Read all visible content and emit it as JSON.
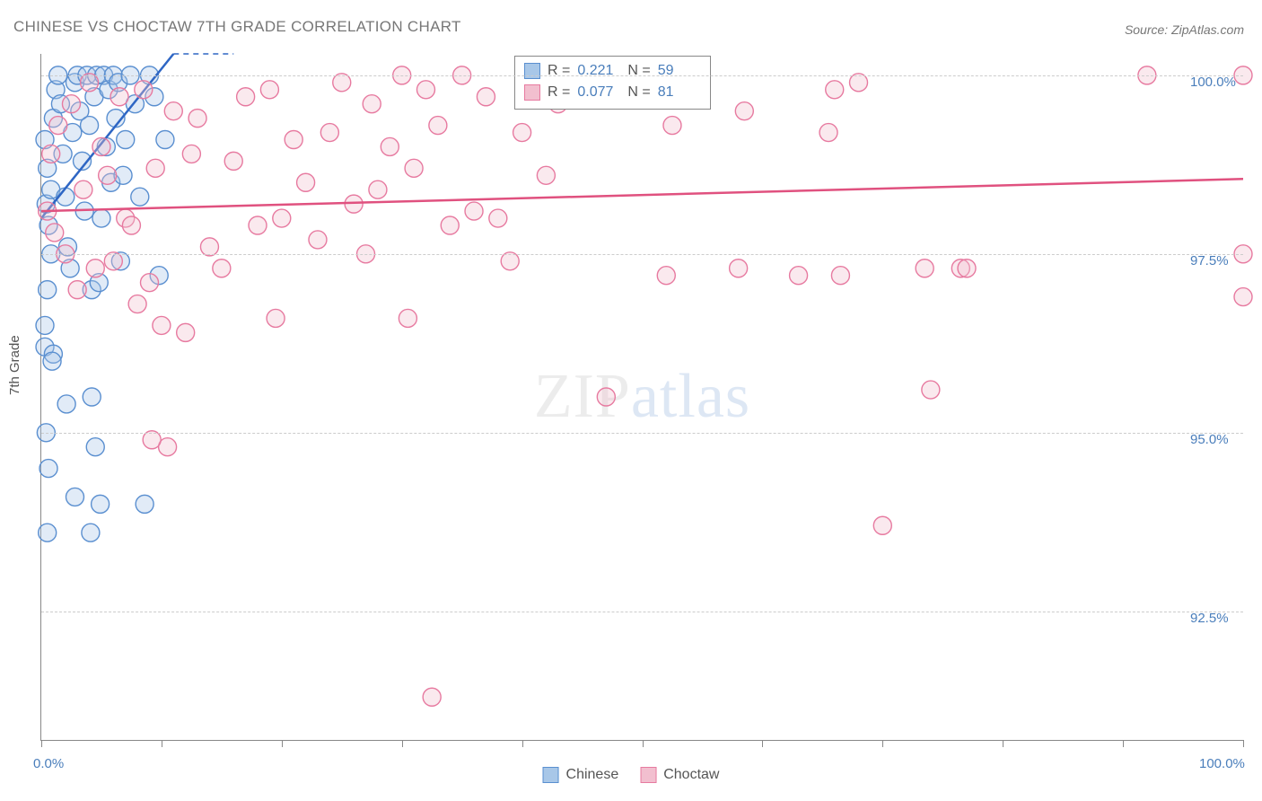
{
  "title": "CHINESE VS CHOCTAW 7TH GRADE CORRELATION CHART",
  "source": "Source: ZipAtlas.com",
  "watermark_zip": "ZIP",
  "watermark_atlas": "atlas",
  "ylabel": "7th Grade",
  "chart": {
    "type": "scatter",
    "background_color": "#ffffff",
    "grid_color": "#cccccc",
    "axis_color": "#888888",
    "tick_label_color": "#4a7ebb",
    "xlim": [
      0,
      100
    ],
    "ylim": [
      90.7,
      100.3
    ],
    "x_ticks": [
      0,
      10,
      20,
      30,
      40,
      50,
      60,
      70,
      80,
      90,
      100
    ],
    "x_tick_labels": {
      "0": "0.0%",
      "100": "100.0%"
    },
    "y_ticks": [
      92.5,
      95.0,
      97.5,
      100.0
    ],
    "y_tick_labels": [
      "92.5%",
      "95.0%",
      "97.5%",
      "100.0%"
    ],
    "marker_radius": 10,
    "marker_fill_opacity": 0.35,
    "marker_stroke_width": 1.4,
    "title_fontsize": 17,
    "label_fontsize": 15,
    "series": [
      {
        "name": "Chinese",
        "color_fill": "#a8c7e8",
        "color_stroke": "#5a8fd0",
        "trend": {
          "x1": 0,
          "y1": 98.0,
          "x2": 11,
          "y2": 100.3,
          "color": "#2e66c4",
          "width": 2.5,
          "extrap_x2": 16,
          "extrap_y2": 100.3
        },
        "points": [
          [
            0.3,
            99.1
          ],
          [
            0.5,
            98.7
          ],
          [
            0.4,
            98.2
          ],
          [
            0.6,
            97.9
          ],
          [
            0.8,
            98.4
          ],
          [
            1.0,
            99.4
          ],
          [
            1.2,
            99.8
          ],
          [
            1.4,
            100.0
          ],
          [
            1.6,
            99.6
          ],
          [
            1.8,
            98.9
          ],
          [
            2.0,
            98.3
          ],
          [
            2.2,
            97.6
          ],
          [
            2.4,
            97.3
          ],
          [
            2.6,
            99.2
          ],
          [
            2.8,
            99.9
          ],
          [
            3.0,
            100.0
          ],
          [
            3.2,
            99.5
          ],
          [
            3.4,
            98.8
          ],
          [
            3.6,
            98.1
          ],
          [
            3.8,
            100.0
          ],
          [
            4.0,
            99.3
          ],
          [
            4.2,
            97.0
          ],
          [
            4.4,
            99.7
          ],
          [
            4.6,
            100.0
          ],
          [
            4.8,
            97.1
          ],
          [
            5.0,
            98.0
          ],
          [
            5.2,
            100.0
          ],
          [
            5.4,
            99.0
          ],
          [
            5.6,
            99.8
          ],
          [
            5.8,
            98.5
          ],
          [
            6.0,
            100.0
          ],
          [
            6.2,
            99.4
          ],
          [
            6.4,
            99.9
          ],
          [
            6.6,
            97.4
          ],
          [
            6.8,
            98.6
          ],
          [
            7.0,
            99.1
          ],
          [
            7.4,
            100.0
          ],
          [
            7.8,
            99.6
          ],
          [
            8.2,
            98.3
          ],
          [
            8.6,
            94.0
          ],
          [
            9.0,
            100.0
          ],
          [
            9.4,
            99.7
          ],
          [
            9.8,
            97.2
          ],
          [
            10.3,
            99.1
          ],
          [
            0.8,
            97.5
          ],
          [
            0.5,
            97.0
          ],
          [
            0.3,
            96.2
          ],
          [
            1.0,
            96.1
          ],
          [
            0.9,
            96.0
          ],
          [
            2.1,
            95.4
          ],
          [
            4.2,
            95.5
          ],
          [
            4.9,
            94.0
          ],
          [
            0.4,
            95.0
          ],
          [
            4.5,
            94.8
          ],
          [
            0.6,
            94.5
          ],
          [
            2.8,
            94.1
          ],
          [
            4.1,
            93.6
          ],
          [
            0.5,
            93.6
          ],
          [
            0.3,
            96.5
          ]
        ]
      },
      {
        "name": "Choctaw",
        "color_fill": "#f2bfcf",
        "color_stroke": "#e77aa0",
        "trend": {
          "x1": 0,
          "y1": 98.1,
          "x2": 100,
          "y2": 98.55,
          "color": "#e0517f",
          "width": 2.5
        },
        "points": [
          [
            0.5,
            98.1
          ],
          [
            0.8,
            98.9
          ],
          [
            1.1,
            97.8
          ],
          [
            1.4,
            99.3
          ],
          [
            2.0,
            97.5
          ],
          [
            2.5,
            99.6
          ],
          [
            3.0,
            97.0
          ],
          [
            3.5,
            98.4
          ],
          [
            4.0,
            99.9
          ],
          [
            4.5,
            97.3
          ],
          [
            5.0,
            99.0
          ],
          [
            5.5,
            98.6
          ],
          [
            6.0,
            97.4
          ],
          [
            6.5,
            99.7
          ],
          [
            7.0,
            98.0
          ],
          [
            7.5,
            97.9
          ],
          [
            8.0,
            96.8
          ],
          [
            8.5,
            99.8
          ],
          [
            9.0,
            97.1
          ],
          [
            9.5,
            98.7
          ],
          [
            10.0,
            96.5
          ],
          [
            10.5,
            94.8
          ],
          [
            11.0,
            99.5
          ],
          [
            9.2,
            94.9
          ],
          [
            12.0,
            96.4
          ],
          [
            12.5,
            98.9
          ],
          [
            13.0,
            99.4
          ],
          [
            14.0,
            97.6
          ],
          [
            15.0,
            97.3
          ],
          [
            16.0,
            98.8
          ],
          [
            17.0,
            99.7
          ],
          [
            18.0,
            97.9
          ],
          [
            19.0,
            99.8
          ],
          [
            19.5,
            96.6
          ],
          [
            20.0,
            98.0
          ],
          [
            21.0,
            99.1
          ],
          [
            22.0,
            98.5
          ],
          [
            23.0,
            97.7
          ],
          [
            24.0,
            99.2
          ],
          [
            25.0,
            99.9
          ],
          [
            26.0,
            98.2
          ],
          [
            27.0,
            97.5
          ],
          [
            27.5,
            99.6
          ],
          [
            28.0,
            98.4
          ],
          [
            29.0,
            99.0
          ],
          [
            30.0,
            100.0
          ],
          [
            30.5,
            96.6
          ],
          [
            31.0,
            98.7
          ],
          [
            32.0,
            99.8
          ],
          [
            32.5,
            91.3
          ],
          [
            33.0,
            99.3
          ],
          [
            34.0,
            97.9
          ],
          [
            35.0,
            100.0
          ],
          [
            36.0,
            98.1
          ],
          [
            37.0,
            99.7
          ],
          [
            38.0,
            98.0
          ],
          [
            39.0,
            97.4
          ],
          [
            40.0,
            99.2
          ],
          [
            41.0,
            99.9
          ],
          [
            42.0,
            98.6
          ],
          [
            43.0,
            99.6
          ],
          [
            47.0,
            95.5
          ],
          [
            52.0,
            97.2
          ],
          [
            52.5,
            99.3
          ],
          [
            53.0,
            99.9
          ],
          [
            58.0,
            97.3
          ],
          [
            58.5,
            99.5
          ],
          [
            63.0,
            97.2
          ],
          [
            65.5,
            99.2
          ],
          [
            66.0,
            99.8
          ],
          [
            66.5,
            97.2
          ],
          [
            68.0,
            99.9
          ],
          [
            70.0,
            93.7
          ],
          [
            73.5,
            97.3
          ],
          [
            74.0,
            95.6
          ],
          [
            76.5,
            97.3
          ],
          [
            77.0,
            97.3
          ],
          [
            92.0,
            100.0
          ],
          [
            100.0,
            100.0
          ],
          [
            100.0,
            97.5
          ],
          [
            100.0,
            96.9
          ]
        ]
      }
    ]
  },
  "legend_box": {
    "rows": [
      {
        "swatch_fill": "#a8c7e8",
        "swatch_stroke": "#5a8fd0",
        "r_label": "R =",
        "r_value": "0.221",
        "n_label": "N =",
        "n_value": "59"
      },
      {
        "swatch_fill": "#f2bfcf",
        "swatch_stroke": "#e77aa0",
        "r_label": "R =",
        "r_value": "0.077",
        "n_label": "N =",
        "n_value": "81"
      }
    ]
  },
  "footer_legend": [
    {
      "swatch_fill": "#a8c7e8",
      "swatch_stroke": "#5a8fd0",
      "label": "Chinese"
    },
    {
      "swatch_fill": "#f2bfcf",
      "swatch_stroke": "#e77aa0",
      "label": "Choctaw"
    }
  ]
}
